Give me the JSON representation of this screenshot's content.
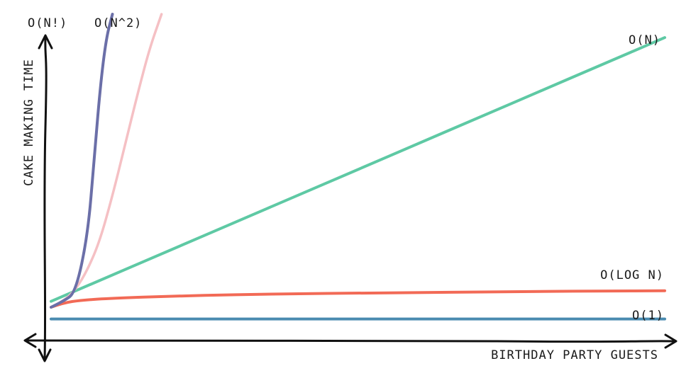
{
  "chart_data": {
    "type": "line",
    "title": "",
    "xlabel": "BIRTHDAY PARTY GUESTS",
    "ylabel": "CAKE MAKING TIME",
    "ylim": [
      0,
      100
    ],
    "grid": false,
    "legend": "inline-end-labels",
    "series": [
      {
        "name": "O(N!)",
        "color": "#6b6fa8",
        "stroke": 4,
        "x": [
          0,
          2,
          4,
          6,
          7,
          8,
          9,
          10
        ],
        "y": [
          0,
          2,
          5,
          25,
          50,
          75,
          92,
          100
        ]
      },
      {
        "name": "O(N^2)",
        "color": "#f5c0c4",
        "stroke": 3.5,
        "x": [
          0,
          2,
          4,
          6,
          8,
          10,
          12,
          14,
          16,
          18
        ],
        "y": [
          0,
          2,
          6,
          13,
          23,
          38,
          55,
          72,
          88,
          100
        ]
      },
      {
        "name": "O(N)",
        "color": "#5ec9a4",
        "stroke": 4,
        "x": [
          0,
          10,
          20,
          30,
          40,
          50,
          60,
          70,
          80,
          90,
          100
        ],
        "y": [
          2,
          11,
          20,
          29,
          38,
          47,
          56,
          65,
          74,
          83,
          92
        ]
      },
      {
        "name": "O(LOG N)",
        "color": "#f26a56",
        "stroke": 4,
        "x": [
          0,
          2,
          5,
          10,
          20,
          30,
          40,
          50,
          60,
          70,
          80,
          90,
          100
        ],
        "y": [
          0,
          1.5,
          2.4,
          3.1,
          3.8,
          4.3,
          4.6,
          4.8,
          5.0,
          5.2,
          5.4,
          5.5,
          5.6
        ]
      },
      {
        "name": "O(1)",
        "color": "#4a8bb0",
        "stroke": 4,
        "x": [
          0,
          25,
          50,
          75,
          100
        ],
        "y": [
          -4,
          -4,
          -4,
          -4,
          -4
        ]
      }
    ]
  }
}
